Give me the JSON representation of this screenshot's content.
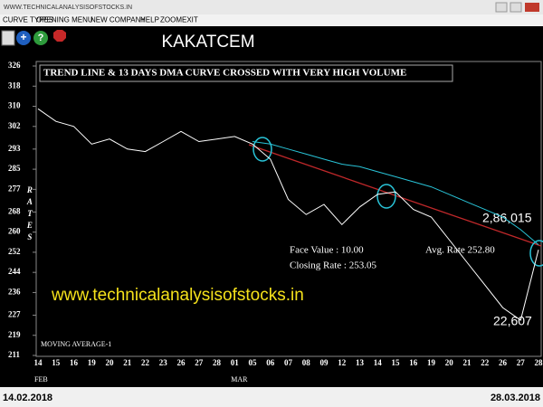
{
  "window": {
    "title": "WWW.TECHNICALANALYSISOFSTOCKS.IN",
    "menu": [
      "CURVE TYPES",
      "OPENING MENU",
      "NEW COMPANY",
      "HELP",
      "ZOOM",
      "EXIT"
    ]
  },
  "footer": {
    "start_date": "14.02.2018",
    "end_date": "28.03.2018"
  },
  "chart_data": {
    "type": "line",
    "title": "KAKATCEM",
    "headline": "TREND LINE & 13 DAYS DMA CURVE CROSSED WITH VERY HIGH VOLUME",
    "y_label": "RATES",
    "annotations": [
      "Face Value   : 10.00",
      "Closing Rate : 253.05",
      "Avg. Rate 252.80",
      "2,86,015",
      "22,607",
      "MOVING AVERAGE-1",
      "www.technicalanalysisofstocks.in"
    ],
    "categories": [
      "14",
      "15",
      "16",
      "19",
      "20",
      "21",
      "22",
      "23",
      "26",
      "27",
      "28",
      "01",
      "05",
      "06",
      "07",
      "08",
      "09",
      "12",
      "13",
      "14",
      "15",
      "16",
      "19",
      "20",
      "21",
      "22",
      "26",
      "27",
      "28"
    ],
    "month_labels": [
      "FEB",
      "MAR"
    ],
    "series": [
      {
        "color": "#ffffff",
        "values": [
          309,
          304,
          302,
          295,
          297,
          293,
          292,
          296,
          300,
          296,
          297,
          298,
          295,
          289,
          273,
          267,
          271,
          263,
          270,
          275,
          276,
          269,
          266,
          257,
          248,
          239,
          230,
          225,
          253
        ]
      },
      {
        "color": "#29c4d8",
        "values": [
          null,
          null,
          null,
          null,
          null,
          null,
          null,
          null,
          null,
          null,
          null,
          null,
          296,
          295,
          293,
          291,
          289,
          287,
          286,
          284,
          282,
          280,
          278,
          275,
          272,
          269,
          266,
          261,
          255
        ]
      }
    ],
    "ylim": [
      211,
      326
    ],
    "yticks": [
      326,
      318,
      310,
      302,
      293,
      285,
      277,
      268,
      260,
      252,
      244,
      236,
      227,
      219,
      211
    ]
  }
}
